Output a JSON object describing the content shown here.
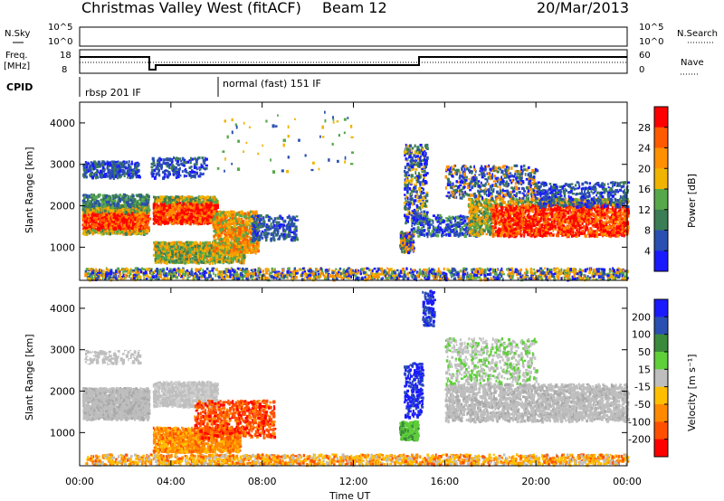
{
  "header": {
    "title": "Christmas Valley West (fitACF)",
    "beam": "Beam 12",
    "date": "20/Mar/2013"
  },
  "panels": {
    "nsky": {
      "left_label": "N.Sky",
      "right_label": "N.Search",
      "left_ticks": [
        "10^5",
        "10^0"
      ],
      "right_ticks": [
        "10^5",
        "10^0"
      ]
    },
    "freq": {
      "left_label_1": "Freq.",
      "left_label_2": "[MHz]",
      "right_label": "Nave",
      "left_ticks": [
        "18",
        "8"
      ],
      "right_ticks": [
        "60",
        "0"
      ]
    },
    "cpid": {
      "label": "CPID",
      "programs": [
        "rbsp 201 IF",
        "normal (fast) 151 IF"
      ]
    }
  },
  "colors": {
    "power_scale": [
      "#1a1aff",
      "#2a4fb0",
      "#3b7d55",
      "#57a84a",
      "#f0b400",
      "#ff9000",
      "#ff5a00",
      "#ff0000"
    ],
    "velocity_scale": [
      "#1a1aff",
      "#2a4fb0",
      "#3b8a3b",
      "#5fcf3a",
      "#bebebe",
      "#ffbf00",
      "#ff8a00",
      "#ff5000",
      "#ff0000"
    ]
  },
  "chart_data": [
    {
      "type": "heatmap",
      "name": "power",
      "ylabel": "Slant Range [km]",
      "yticks": [
        "4000",
        "3000",
        "2000",
        "1000"
      ],
      "ylim": [
        200,
        4500
      ],
      "xlim": [
        "00:00",
        "24:00"
      ],
      "colorbar_label": "Power [dB]",
      "colorbar_ticks": [
        "28",
        "24",
        "20",
        "16",
        "12",
        "8",
        "4"
      ]
    },
    {
      "type": "heatmap",
      "name": "velocity",
      "ylabel": "Slant Range [km]",
      "yticks": [
        "4000",
        "3000",
        "2000",
        "1000"
      ],
      "ylim": [
        200,
        4500
      ],
      "xlim": [
        "00:00",
        "24:00"
      ],
      "colorbar_label": "Velocity [m s⁻¹]",
      "colorbar_ticks": [
        "200",
        "100",
        "50",
        "15",
        "-15",
        "-50",
        "-100",
        "-200"
      ]
    }
  ],
  "xaxis": {
    "label": "Time UT",
    "ticks": [
      "00:00",
      "04:00",
      "08:00",
      "12:00",
      "16:00",
      "20:00",
      "00:00"
    ]
  }
}
